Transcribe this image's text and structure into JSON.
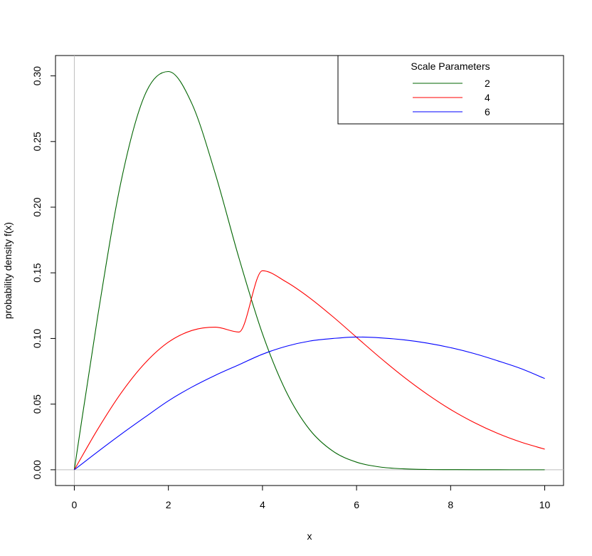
{
  "chart_data": {
    "type": "line",
    "title": "",
    "xlabel": "x",
    "ylabel": "probability density f(x)",
    "xlim": [
      -0.4,
      10.4
    ],
    "ylim": [
      -0.012,
      0.3155
    ],
    "x_ticks": [
      0,
      2,
      4,
      6,
      8,
      10
    ],
    "y_ticks": [
      0.0,
      0.05,
      0.1,
      0.15,
      0.2,
      0.25,
      0.3
    ],
    "x_tick_labels": [
      "0",
      "2",
      "4",
      "6",
      "8",
      "10"
    ],
    "y_tick_labels": [
      "0.00",
      "0.05",
      "0.10",
      "0.15",
      "0.20",
      "0.25",
      "0.30"
    ],
    "grid": false,
    "reference_lines": {
      "x": 0,
      "y": 0,
      "color": "#bebebe"
    },
    "legend": {
      "title": "Scale Parameters",
      "placement": "top-right",
      "entries": [
        "2",
        "4",
        "6"
      ]
    },
    "x": [
      0,
      0.5,
      1,
      1.5,
      2,
      2.5,
      3,
      3.5,
      4,
      4.5,
      5,
      5.5,
      6,
      6.5,
      7,
      7.5,
      8,
      8.5,
      9,
      9.5,
      10
    ],
    "series": [
      {
        "name": "2",
        "color": "#006400",
        "values": [
          0,
          0.1175,
          0.2206,
          0.2855,
          0.3033,
          0.2788,
          0.2251,
          0.1613,
          0.1036,
          0.0598,
          0.0307,
          0.0141,
          0.0058,
          0.0021,
          0.0007,
          0.0002,
          0.0001,
          2e-05,
          5e-06,
          1e-06,
          0
        ]
      },
      {
        "name": "4",
        "color": "#ff0000",
        "values": [
          0,
          0.031,
          0.0587,
          0.0811,
          0.0972,
          0.1061,
          0.1086,
          0.1049,
          0.1516,
          0.1432,
          0.131,
          0.1165,
          0.1009,
          0.0854,
          0.0708,
          0.0576,
          0.0459,
          0.036,
          0.0277,
          0.021,
          0.0157
        ]
      },
      {
        "name": "6",
        "color": "#0000ff",
        "values": [
          0,
          0.0138,
          0.0272,
          0.04,
          0.0525,
          0.063,
          0.072,
          0.08,
          0.088,
          0.094,
          0.098,
          0.1,
          0.1011,
          0.1005,
          0.099,
          0.0965,
          0.093,
          0.0885,
          0.083,
          0.077,
          0.0695
        ]
      }
    ]
  }
}
